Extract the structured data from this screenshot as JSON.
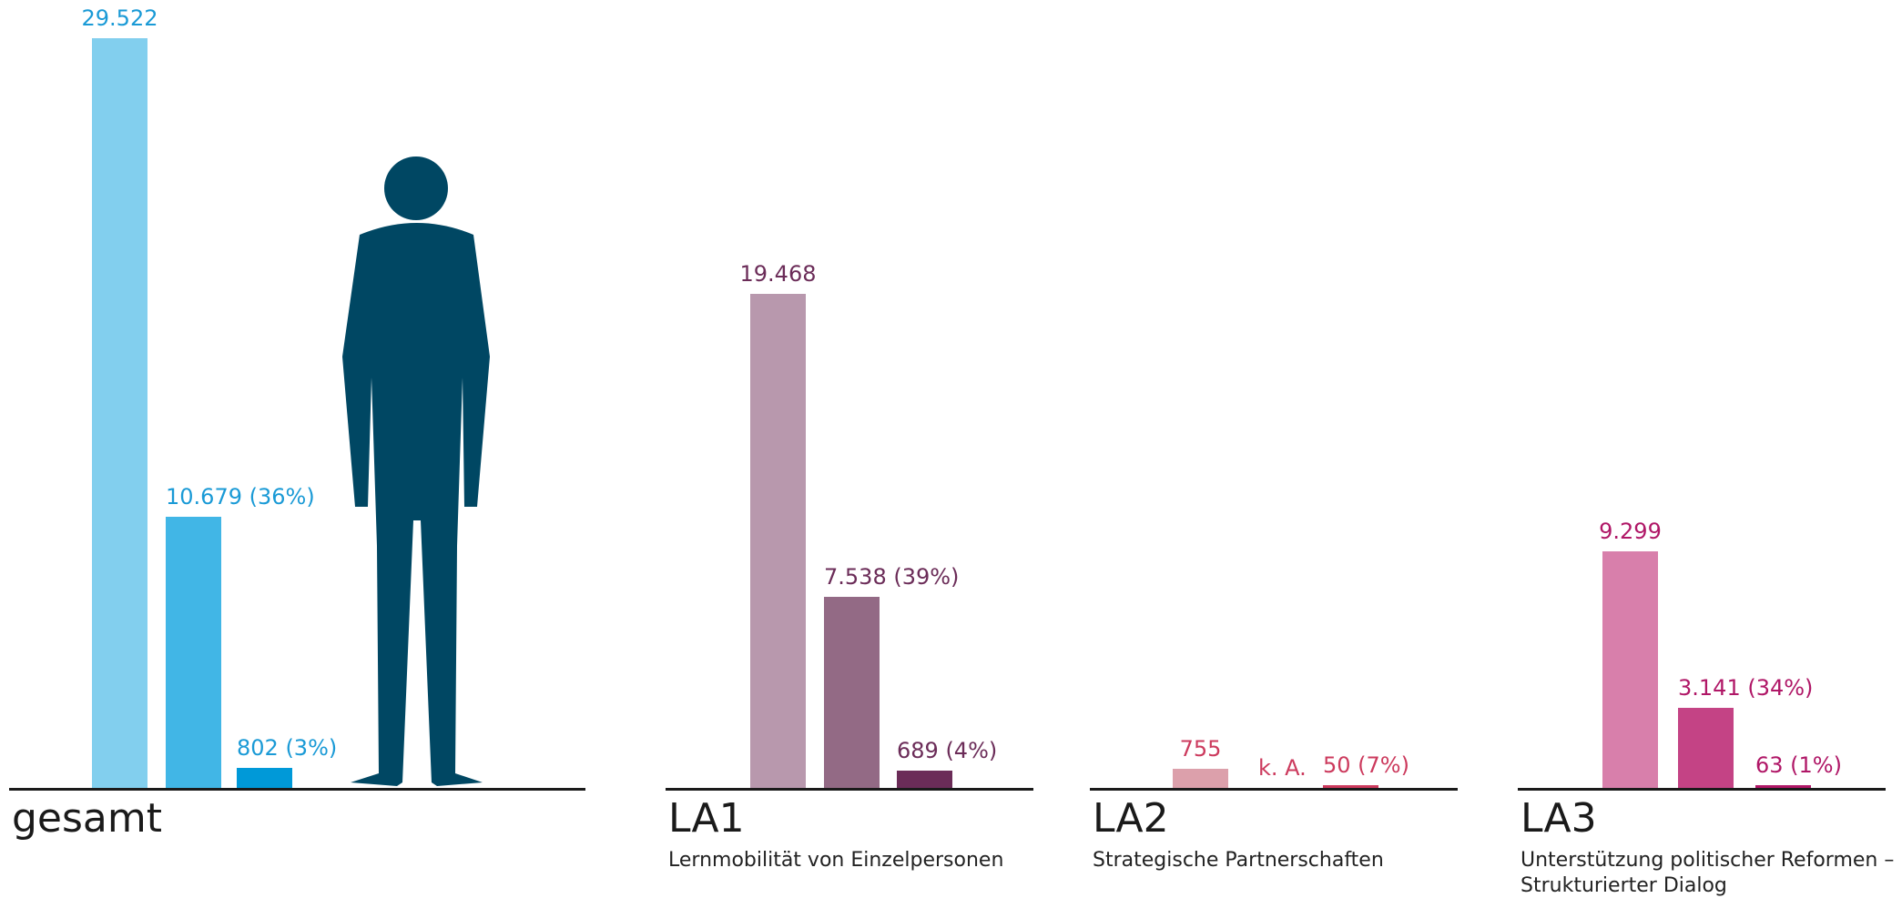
{
  "chart_data": [
    {
      "type": "bar",
      "title": "gesamt",
      "subtitle": "",
      "values": [
        29522,
        10679,
        802
      ],
      "value_labels": [
        "29.522",
        "10.679 (36%)",
        "802 (3%)"
      ],
      "colors": [
        "#82cfee",
        "#41b6e6",
        "#0099d8"
      ],
      "label_color": "#1a9ad6"
    },
    {
      "type": "bar",
      "title": "LA1",
      "subtitle": "Lernmobilität von Einzelpersonen",
      "values": [
        19468,
        7538,
        689
      ],
      "value_labels": [
        "19.468",
        "7.538 (39%)",
        "689 (4%)"
      ],
      "colors": [
        "#b898ad",
        "#936a85",
        "#6b2c58"
      ],
      "label_color": "#6b2c58"
    },
    {
      "type": "bar",
      "title": "LA2",
      "subtitle": "Strategische Partnerschaften",
      "values": [
        755,
        null,
        50
      ],
      "value_labels": [
        "755",
        "k. A.",
        "50 (7%)"
      ],
      "colors": [
        "#dca0ab",
        "#cc3a5d",
        "#cc3a5d"
      ],
      "label_color": "#cc3a5d"
    },
    {
      "type": "bar",
      "title": "LA3",
      "subtitle": "Unterstützung politischer Reformen –\nStrukturierter Dialog",
      "values": [
        9299,
        3141,
        63
      ],
      "value_labels": [
        "9.299",
        "3.141 (34%)",
        "63 (1%)"
      ],
      "colors": [
        "#d87fab",
        "#c44385",
        "#b01767"
      ],
      "label_color": "#b01767"
    }
  ],
  "person_icon": {
    "name": "person-silhouette-icon",
    "color": "#004763"
  }
}
